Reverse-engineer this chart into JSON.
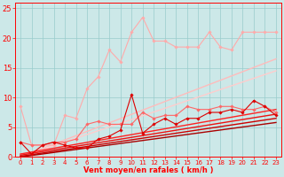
{
  "background_color": "#cce8e8",
  "grid_color": "#99cccc",
  "xlabel": "Vent moyen/en rafales ( km/h )",
  "xlabel_color": "#ff0000",
  "xlabel_fontsize": 6,
  "tick_color": "#ff0000",
  "tick_fontsize": 5,
  "xlim": [
    -0.5,
    23.5
  ],
  "ylim": [
    0,
    26
  ],
  "yticks": [
    0,
    5,
    10,
    15,
    20,
    25
  ],
  "xticks": [
    0,
    1,
    2,
    3,
    4,
    5,
    6,
    7,
    8,
    9,
    10,
    11,
    12,
    13,
    14,
    15,
    16,
    17,
    18,
    19,
    20,
    21,
    22,
    23
  ],
  "lines": [
    {
      "x": [
        0,
        1,
        2,
        3,
        4,
        5,
        6,
        7,
        8,
        9,
        10,
        11,
        12,
        13,
        14,
        15,
        16,
        17,
        18,
        19,
        20,
        21,
        22,
        23
      ],
      "y": [
        8.5,
        2.0,
        2.0,
        2.0,
        7.0,
        6.5,
        11.5,
        13.5,
        18.0,
        16.0,
        21.0,
        23.5,
        19.5,
        19.5,
        18.5,
        18.5,
        18.5,
        21.0,
        18.5,
        18.0,
        21.0,
        21.0,
        21.0,
        21.0
      ],
      "color": "#ffaaaa",
      "lw": 0.8,
      "marker": "D",
      "ms": 1.8,
      "zorder": 3
    },
    {
      "x": [
        0,
        23
      ],
      "y": [
        0,
        16.5
      ],
      "color": "#ffbbbb",
      "lw": 1.0,
      "marker": null,
      "ms": 0,
      "zorder": 2
    },
    {
      "x": [
        0,
        23
      ],
      "y": [
        0,
        14.5
      ],
      "color": "#ffcccc",
      "lw": 1.0,
      "marker": null,
      "ms": 0,
      "zorder": 2
    },
    {
      "x": [
        0,
        1,
        2,
        3,
        4,
        5,
        6,
        7,
        8,
        9,
        10,
        11,
        12,
        13,
        14,
        15,
        16,
        17,
        18,
        19,
        20,
        21,
        22,
        23
      ],
      "y": [
        2.5,
        2.0,
        2.0,
        2.5,
        2.5,
        3.0,
        5.5,
        6.0,
        5.5,
        5.5,
        5.5,
        7.5,
        6.5,
        7.0,
        7.0,
        8.5,
        8.0,
        8.0,
        8.5,
        8.5,
        8.0,
        8.0,
        8.5,
        7.5
      ],
      "color": "#ff6666",
      "lw": 0.8,
      "marker": "D",
      "ms": 1.8,
      "zorder": 3
    },
    {
      "x": [
        0,
        1,
        2,
        3,
        4,
        5,
        6,
        7,
        8,
        9,
        10,
        11,
        12,
        13,
        14,
        15,
        16,
        17,
        18,
        19,
        20,
        21,
        22,
        23
      ],
      "y": [
        2.5,
        0.5,
        2.0,
        2.5,
        2.0,
        1.5,
        1.5,
        3.0,
        3.5,
        4.5,
        10.5,
        4.0,
        5.5,
        6.5,
        5.5,
        6.5,
        6.5,
        7.5,
        7.5,
        8.0,
        7.5,
        9.5,
        8.5,
        7.0
      ],
      "color": "#dd0000",
      "lw": 0.8,
      "marker": "D",
      "ms": 1.8,
      "zorder": 3
    },
    {
      "x": [
        0,
        23
      ],
      "y": [
        0.5,
        8.0
      ],
      "color": "#ff2222",
      "lw": 1.0,
      "marker": null,
      "ms": 0,
      "zorder": 2
    },
    {
      "x": [
        0,
        23
      ],
      "y": [
        0.3,
        7.2
      ],
      "color": "#ee1111",
      "lw": 1.0,
      "marker": null,
      "ms": 0,
      "zorder": 2
    },
    {
      "x": [
        0,
        23
      ],
      "y": [
        0.1,
        6.5
      ],
      "color": "#cc0000",
      "lw": 1.0,
      "marker": null,
      "ms": 0,
      "zorder": 2
    },
    {
      "x": [
        0,
        23
      ],
      "y": [
        0.0,
        5.8
      ],
      "color": "#aa0000",
      "lw": 1.0,
      "marker": null,
      "ms": 0,
      "zorder": 2
    }
  ]
}
